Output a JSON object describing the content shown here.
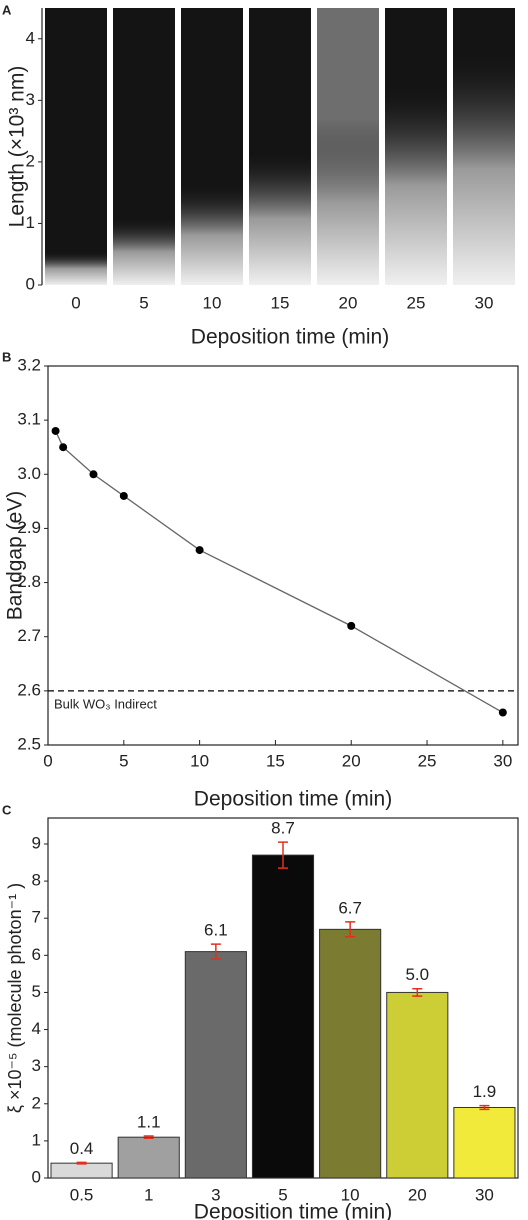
{
  "chart_data": [
    {
      "type": "image-strip",
      "panel_label": "A",
      "y_label": "Length (×10³ nm)",
      "x_label": "Deposition time (min)",
      "categories": [
        "0",
        "5",
        "10",
        "15",
        "20",
        "25",
        "30"
      ],
      "ylim": [
        0,
        4.5
      ],
      "yticks": [
        0,
        1,
        2,
        3,
        4
      ]
    },
    {
      "type": "line",
      "panel_label": "B",
      "y_label": "Bandgap (eV)",
      "x_label": "Deposition time (min)",
      "x": [
        0.5,
        1,
        3,
        5,
        10,
        20,
        30
      ],
      "values": [
        3.08,
        3.05,
        3.0,
        2.96,
        2.86,
        2.72,
        2.56
      ],
      "line_color": "#666666",
      "marker_color": "#000000",
      "xlim": [
        0,
        31
      ],
      "xticks": [
        0,
        5,
        10,
        15,
        20,
        25,
        30
      ],
      "ylim": [
        2.5,
        3.2
      ],
      "yticks": [
        {
          "value": 2.5,
          "label": "2.5"
        },
        2.6,
        2.7,
        2.8,
        2.9,
        {
          "value": 3.0,
          "label": "3.0"
        },
        3.1,
        3.2
      ],
      "reference_line": {
        "value": 2.6,
        "label": "Bulk WO₃ Indirect"
      }
    },
    {
      "type": "bar",
      "panel_label": "C",
      "y_label": "ξ ×10⁻⁵ (molecule photon⁻¹ )",
      "x_label": "Deposition time (min)",
      "categories": [
        "0.5",
        "1",
        "3",
        "5",
        "10",
        "20",
        "30"
      ],
      "values": [
        0.4,
        1.1,
        6.1,
        8.7,
        6.7,
        5.0,
        1.9
      ],
      "value_labels": [
        "0.4",
        "1.1",
        "6.1",
        "8.7",
        "6.7",
        "5.0",
        "1.9"
      ],
      "errors": [
        0.02,
        0.03,
        0.2,
        0.35,
        0.2,
        0.1,
        0.05
      ],
      "colors": [
        "#d9d9d9",
        "#a0a0a0",
        "#6a6a6a",
        "#0a0a0a",
        "#7b7b32",
        "#cdcd35",
        "#f2ea3a"
      ],
      "error_color": "#e03020",
      "ylim": [
        0,
        9.7
      ],
      "yticks": [
        0,
        1,
        2,
        3,
        4,
        5,
        6,
        7,
        8,
        9
      ]
    }
  ]
}
